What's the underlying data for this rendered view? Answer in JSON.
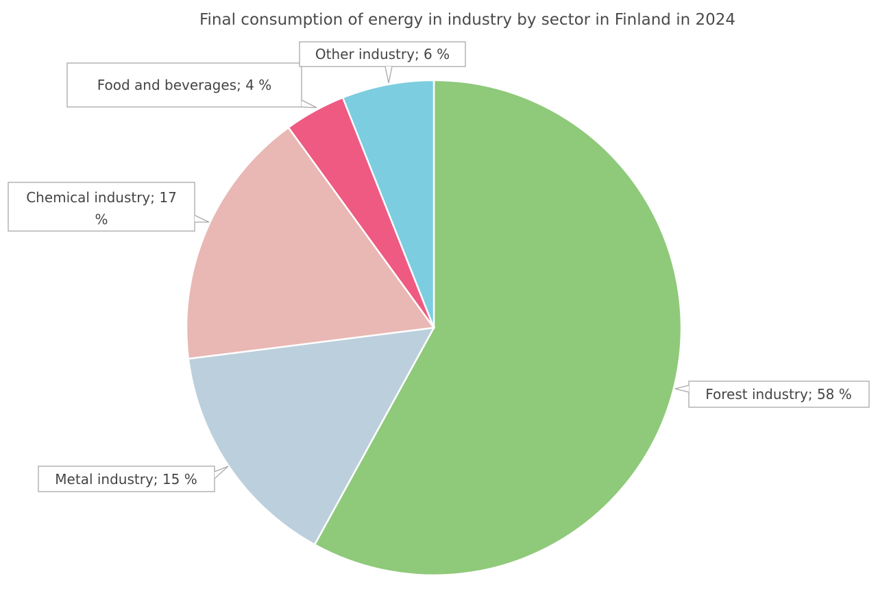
{
  "chart_data": {
    "type": "pie",
    "title": "Final consumption of energy in industry by sector in Finland in 2024",
    "unit": "%",
    "slices": [
      {
        "label": "Forest industry",
        "value": 58,
        "display": "Forest industry; 58 %",
        "color": "#8fc97a"
      },
      {
        "label": "Metal industry",
        "value": 15,
        "display": "Metal industry; 15 %",
        "color": "#bccfdc"
      },
      {
        "label": "Chemical industry",
        "value": 17,
        "display": "Chemical industry; 17 %",
        "display_lines": [
          "Chemical industry; 17",
          "%"
        ],
        "color": "#e9b8b4"
      },
      {
        "label": "Food and beverages",
        "value": 4,
        "display": "Food and beverages; 4 %",
        "color": "#ee5a82"
      },
      {
        "label": "Other industry",
        "value": 6,
        "display": "Other industry; 6 %",
        "color": "#7ccde0"
      }
    ],
    "start_angle_deg": 0,
    "direction": "clockwise",
    "data_labels": "callouts"
  }
}
